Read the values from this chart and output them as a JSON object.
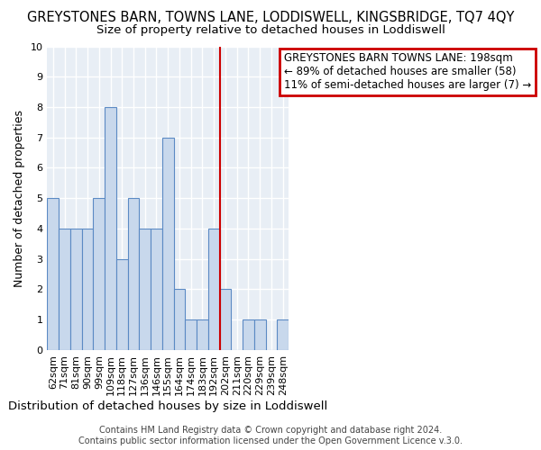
{
  "title": "GREYSTONES BARN, TOWNS LANE, LODDISWELL, KINGSBRIDGE, TQ7 4QY",
  "subtitle": "Size of property relative to detached houses in Loddiswell",
  "xlabel": "Distribution of detached houses by size in Loddiswell",
  "ylabel": "Number of detached properties",
  "categories": [
    "62sqm",
    "71sqm",
    "81sqm",
    "90sqm",
    "99sqm",
    "109sqm",
    "118sqm",
    "127sqm",
    "136sqm",
    "146sqm",
    "155sqm",
    "164sqm",
    "174sqm",
    "183sqm",
    "192sqm",
    "202sqm",
    "211sqm",
    "220sqm",
    "229sqm",
    "239sqm",
    "248sqm"
  ],
  "values": [
    5,
    4,
    4,
    4,
    5,
    8,
    3,
    5,
    4,
    4,
    7,
    2,
    1,
    1,
    4,
    2,
    0,
    1,
    1,
    0,
    1
  ],
  "bar_color": "#c8d8ec",
  "bar_edge_color": "#5b8ac4",
  "highlight_index": 14,
  "highlight_line_color": "#cc0000",
  "ylim": [
    0,
    10
  ],
  "yticks": [
    0,
    1,
    2,
    3,
    4,
    5,
    6,
    7,
    8,
    9,
    10
  ],
  "legend_title": "GREYSTONES BARN TOWNS LANE: 198sqm",
  "legend_line1": "← 89% of detached houses are smaller (58)",
  "legend_line2": "11% of semi-detached houses are larger (7) →",
  "legend_box_color": "#cc0000",
  "footer": "Contains HM Land Registry data © Crown copyright and database right 2024.\nContains public sector information licensed under the Open Government Licence v.3.0.",
  "title_fontsize": 10.5,
  "subtitle_fontsize": 9.5,
  "xlabel_fontsize": 9.5,
  "ylabel_fontsize": 9,
  "tick_fontsize": 8,
  "legend_fontsize": 8.5,
  "footer_fontsize": 7,
  "background_color": "#ffffff",
  "plot_background_color": "#e8eef5",
  "grid_color": "#ffffff"
}
